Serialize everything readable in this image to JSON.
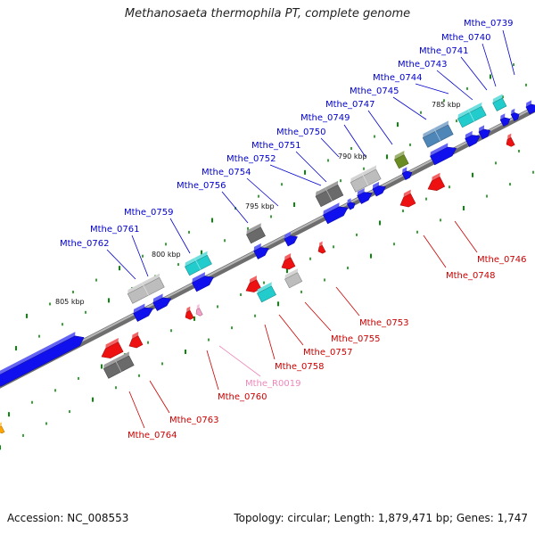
{
  "title": "Methanosaeta thermophila PT, complete genome",
  "footer": {
    "accession": "Accession: NC_008553",
    "summary": "Topology: circular; Length: 1,879,471 bp; Genes: 1,747"
  },
  "colors": {
    "backbone": "#888888",
    "label_top": "#0000cc",
    "label_bottom": "#cc0000",
    "label_rna": "#ee88bb",
    "tick": "#0a8a0a",
    "gene_blue": "#1010ee",
    "gene_red": "#ee1111",
    "gene_cyan": "#22cccc",
    "gene_gray": "#bdbdbd",
    "gene_dark": "#6a6a6a",
    "gene_steel": "#4f86b8",
    "gene_olive": "#6b8b23",
    "gene_pink": "#f4a0c8",
    "gene_orange": "#ffa500"
  },
  "scale_labels": [
    "805 kbp",
    "800 kbp",
    "795 kbp",
    "790 kbp",
    "785 kbp"
  ],
  "top_labels": [
    "Mthe_0739",
    "Mthe_0740",
    "Mthe_0741",
    "Mthe_0743",
    "Mthe_0744",
    "Mthe_0745",
    "Mthe_0747",
    "Mthe_0749",
    "Mthe_0750",
    "Mthe_0751",
    "Mthe_0752",
    "Mthe_0754",
    "Mthe_0756",
    "Mthe_0759",
    "Mthe_0761",
    "Mthe_0762"
  ],
  "bottom_labels": [
    "Mthe_0746",
    "Mthe_0748",
    "Mthe_0753",
    "Mthe_0755",
    "Mthe_0757",
    "Mthe_0758",
    "Mthe_R0019",
    "Mthe_0760",
    "Mthe_0763",
    "Mthe_0764"
  ]
}
